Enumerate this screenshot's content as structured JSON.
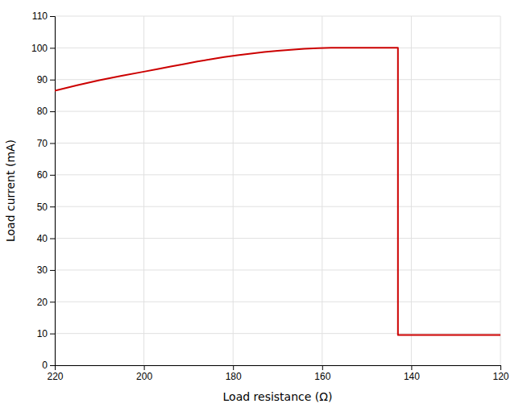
{
  "chart_data": {
    "type": "line",
    "xlabel": "Load resistance (Ω)",
    "ylabel": "Load current (mA)",
    "x": [
      220,
      215,
      210,
      205,
      200,
      197,
      194,
      191,
      188,
      185,
      182,
      179,
      176,
      173,
      170,
      167,
      164,
      161,
      158,
      155,
      152,
      149,
      146,
      143,
      143,
      120
    ],
    "series": [
      {
        "color": "#cc0000",
        "values": [
          86.5,
          88.2,
          89.8,
          91.2,
          92.5,
          93.3,
          94.1,
          94.9,
          95.7,
          96.4,
          97.1,
          97.7,
          98.2,
          98.7,
          99.1,
          99.4,
          99.7,
          99.9,
          100.0,
          100.0,
          100.0,
          100.0,
          100.0,
          100.0,
          9.5,
          9.5
        ]
      }
    ],
    "xlim": [
      220,
      120
    ],
    "ylim": [
      0,
      110
    ],
    "xticks": [
      220,
      200,
      180,
      160,
      140,
      120
    ],
    "yticks": [
      0,
      10,
      20,
      30,
      40,
      50,
      60,
      70,
      80,
      90,
      100,
      110
    ],
    "grid": true
  }
}
